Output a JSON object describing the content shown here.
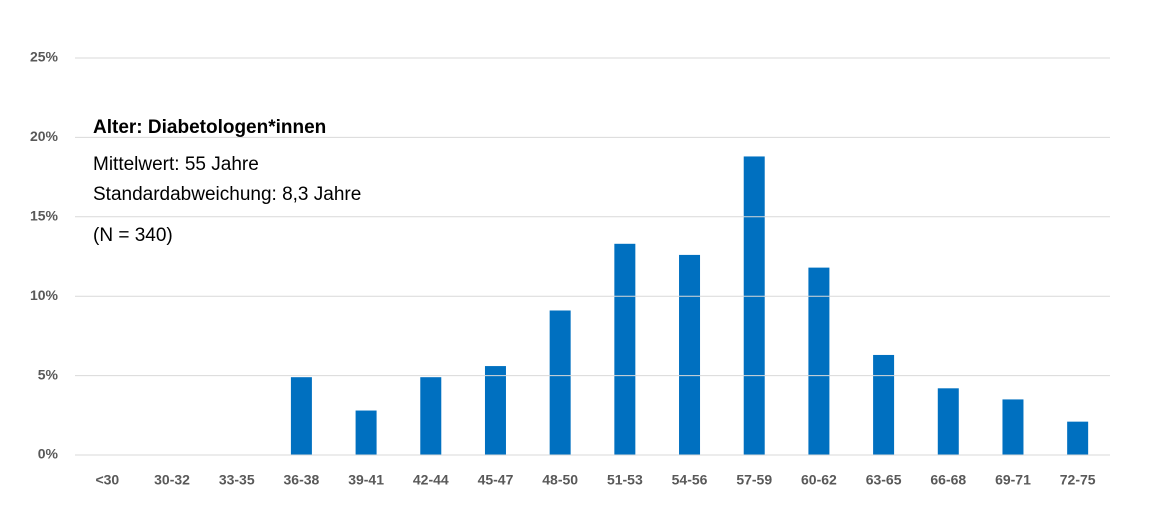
{
  "chart_data": {
    "type": "bar",
    "annotations": [
      "Alter: Diabetologen*innen",
      "Mittelwert: 55 Jahre",
      "Standardabweichung: 8,3 Jahre",
      "(N = 340)"
    ],
    "categories": [
      "<30",
      "30-32",
      "33-35",
      "36-38",
      "39-41",
      "42-44",
      "45-47",
      "48-50",
      "51-53",
      "54-56",
      "57-59",
      "60-62",
      "63-65",
      "66-68",
      "69-71",
      "72-75"
    ],
    "values": [
      0,
      0,
      0,
      4.9,
      2.8,
      4.9,
      5.6,
      9.1,
      13.3,
      12.6,
      18.8,
      11.8,
      6.3,
      4.2,
      3.5,
      2.1
    ],
    "color": "#0070c0",
    "ylim": [
      0,
      25
    ],
    "yticks": [
      {
        "value": 0,
        "label": "0%"
      },
      {
        "value": 5,
        "label": "5%"
      },
      {
        "value": 10,
        "label": "10%"
      },
      {
        "value": 15,
        "label": "15%"
      },
      {
        "value": 20,
        "label": "20%"
      },
      {
        "value": 25,
        "label": "25%"
      }
    ],
    "grid": true
  }
}
